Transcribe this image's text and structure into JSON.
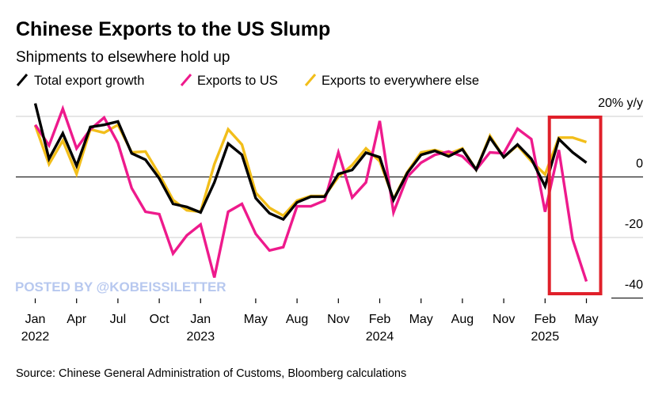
{
  "chart_data": {
    "type": "line",
    "title": "Chinese Exports to the US Slump",
    "subtitle": "Shipments to elsewhere hold up",
    "source": "Source: Chinese General Administration of Customs, Bloomberg calculations",
    "watermark": "POSTED BY @KOBEISSILETTER",
    "y_unit_label": "20% y/y",
    "ylim": [
      -40,
      20
    ],
    "y_ticks": [
      {
        "value": 20,
        "label": "20% y/y"
      },
      {
        "value": 0,
        "label": "0"
      },
      {
        "value": -20,
        "label": "-20"
      },
      {
        "value": -40,
        "label": "-40"
      }
    ],
    "grid": true,
    "legend_position": "top-left",
    "x": [
      "2022-01",
      "2022-02",
      "2022-03",
      "2022-04",
      "2022-05",
      "2022-06",
      "2022-07",
      "2022-08",
      "2022-09",
      "2022-10",
      "2022-11",
      "2022-12",
      "2023-01",
      "2023-02",
      "2023-03",
      "2023-04",
      "2023-05",
      "2023-06",
      "2023-07",
      "2023-08",
      "2023-09",
      "2023-10",
      "2023-11",
      "2023-12",
      "2024-01",
      "2024-02",
      "2024-03",
      "2024-04",
      "2024-05",
      "2024-06",
      "2024-07",
      "2024-08",
      "2024-09",
      "2024-10",
      "2024-11",
      "2024-12",
      "2025-01",
      "2025-02",
      "2025-03",
      "2025-04",
      "2025-05"
    ],
    "x_ticks": [
      {
        "month": "2022-01",
        "label": "Jan",
        "year": "2022"
      },
      {
        "month": "2022-04",
        "label": "Apr",
        "year": ""
      },
      {
        "month": "2022-07",
        "label": "Jul",
        "year": ""
      },
      {
        "month": "2022-10",
        "label": "Oct",
        "year": ""
      },
      {
        "month": "2023-01",
        "label": "Jan",
        "year": "2023"
      },
      {
        "month": "2023-05",
        "label": "May",
        "year": ""
      },
      {
        "month": "2023-08",
        "label": "Aug",
        "year": ""
      },
      {
        "month": "2023-11",
        "label": "Nov",
        "year": ""
      },
      {
        "month": "2024-02",
        "label": "Feb",
        "year": "2024"
      },
      {
        "month": "2024-05",
        "label": "May",
        "year": ""
      },
      {
        "month": "2024-08",
        "label": "Aug",
        "year": ""
      },
      {
        "month": "2024-11",
        "label": "Nov",
        "year": ""
      },
      {
        "month": "2025-02",
        "label": "Feb",
        "year": "2025"
      },
      {
        "month": "2025-05",
        "label": "May",
        "year": ""
      }
    ],
    "series": [
      {
        "name": "Exports to everywhere else",
        "color": "#f2be1a",
        "values": [
          17,
          4.2,
          12,
          1,
          15.7,
          14.6,
          17.2,
          8.1,
          8.4,
          0.8,
          -7.6,
          -11,
          -11.5,
          4.2,
          15.7,
          10.7,
          -5.2,
          -10.2,
          -12.8,
          -7.8,
          -6.3,
          -6.3,
          0,
          3.9,
          9.4,
          5.2,
          -7.3,
          1.6,
          8.1,
          8.9,
          7.6,
          9.4,
          2.4,
          13.6,
          6.5,
          10.4,
          5.2,
          0.8,
          13,
          13,
          11.5
        ]
      },
      {
        "name": "Exports to US",
        "color": "#ee1a8c",
        "values": [
          17.2,
          10.4,
          22.5,
          9.4,
          15.7,
          19.6,
          11.2,
          -3.7,
          -11.5,
          -12.3,
          -25.3,
          -19.3,
          -15.7,
          -33.2,
          -11.5,
          -8.9,
          -18.8,
          -24.3,
          -23.2,
          -9.7,
          -9.7,
          -7.8,
          8.1,
          -6.8,
          -1.8,
          18.5,
          -11.7,
          0,
          4.7,
          7.3,
          8.4,
          6.8,
          2.4,
          8.1,
          7.8,
          15.9,
          12.5,
          -11.5,
          8.9,
          -20.6,
          -34.5
        ]
      },
      {
        "name": "Total export growth",
        "color": "#000000",
        "values": [
          24.3,
          6,
          14.4,
          3.7,
          16.5,
          17.2,
          18.3,
          7.8,
          5.7,
          -0.5,
          -8.9,
          -9.9,
          -11.7,
          -1.8,
          11,
          7.3,
          -7,
          -12,
          -14,
          -8.4,
          -6.5,
          -6.5,
          1,
          2.3,
          8,
          6.5,
          -7.6,
          1.3,
          7.3,
          8.6,
          6.8,
          9.1,
          2.4,
          13,
          6.5,
          10.7,
          6,
          -3.1,
          12.5,
          8.1,
          4.7
        ]
      }
    ],
    "legend": [
      "Total export growth",
      "Exports to US",
      "Exports to everywhere else"
    ],
    "annotation": {
      "type": "highlight-box",
      "from": "2025-03",
      "to": "2025-05",
      "color": "#e0202a"
    }
  }
}
